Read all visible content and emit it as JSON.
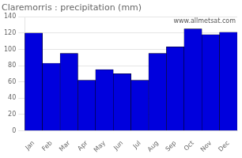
{
  "chart_data": {
    "type": "bar",
    "title": "Claremorris : precipitation (mm)",
    "categories": [
      "Jan",
      "Feb",
      "Mar",
      "Apr",
      "May",
      "Jun",
      "Jul",
      "Aug",
      "Sep",
      "Oct",
      "Nov",
      "Dec"
    ],
    "values": [
      120,
      83,
      95,
      62,
      75,
      70,
      62,
      95,
      103,
      125,
      118,
      121
    ],
    "color": "#0000dd",
    "ylim": [
      0,
      140
    ],
    "yticks": [
      0,
      20,
      40,
      60,
      80,
      100,
      120,
      140
    ],
    "grid": true,
    "annotations": [
      "www.allmetsat.com"
    ]
  }
}
